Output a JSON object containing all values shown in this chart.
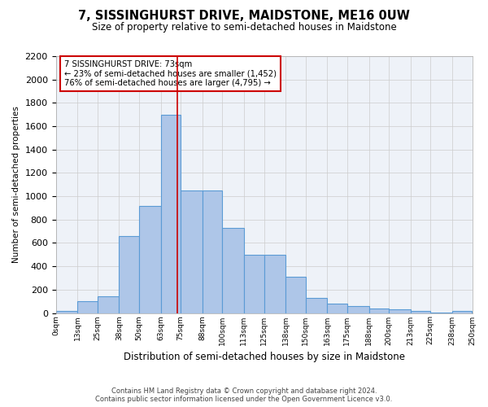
{
  "title": "7, SISSINGHURST DRIVE, MAIDSTONE, ME16 0UW",
  "subtitle": "Size of property relative to semi-detached houses in Maidstone",
  "xlabel": "Distribution of semi-detached houses by size in Maidstone",
  "ylabel": "Number of semi-detached properties",
  "footer_line1": "Contains HM Land Registry data © Crown copyright and database right 2024.",
  "footer_line2": "Contains public sector information licensed under the Open Government Licence v3.0.",
  "annotation_line1": "7 SISSINGHURST DRIVE: 73sqm",
  "annotation_line2": "← 23% of semi-detached houses are smaller (1,452)",
  "annotation_line3": "76% of semi-detached houses are larger (4,795) →",
  "property_size": 73,
  "bin_edges": [
    0,
    13,
    25,
    38,
    50,
    63,
    75,
    88,
    100,
    113,
    125,
    138,
    150,
    163,
    175,
    188,
    200,
    213,
    225,
    238,
    250
  ],
  "bin_labels": [
    "0sqm",
    "13sqm",
    "25sqm",
    "38sqm",
    "50sqm",
    "63sqm",
    "75sqm",
    "88sqm",
    "100sqm",
    "113sqm",
    "125sqm",
    "138sqm",
    "150sqm",
    "163sqm",
    "175sqm",
    "188sqm",
    "200sqm",
    "213sqm",
    "225sqm",
    "238sqm",
    "250sqm"
  ],
  "counts": [
    20,
    100,
    140,
    660,
    920,
    1700,
    1050,
    1050,
    730,
    500,
    500,
    310,
    130,
    80,
    60,
    40,
    30,
    20,
    5,
    20
  ],
  "bar_color": "#aec6e8",
  "bar_edge_color": "#5b9bd5",
  "highlight_line_color": "#cc0000",
  "grid_color": "#cccccc",
  "background_color": "#eef2f8",
  "ylim": [
    0,
    2200
  ],
  "yticks": [
    0,
    200,
    400,
    600,
    800,
    1000,
    1200,
    1400,
    1600,
    1800,
    2000,
    2200
  ]
}
